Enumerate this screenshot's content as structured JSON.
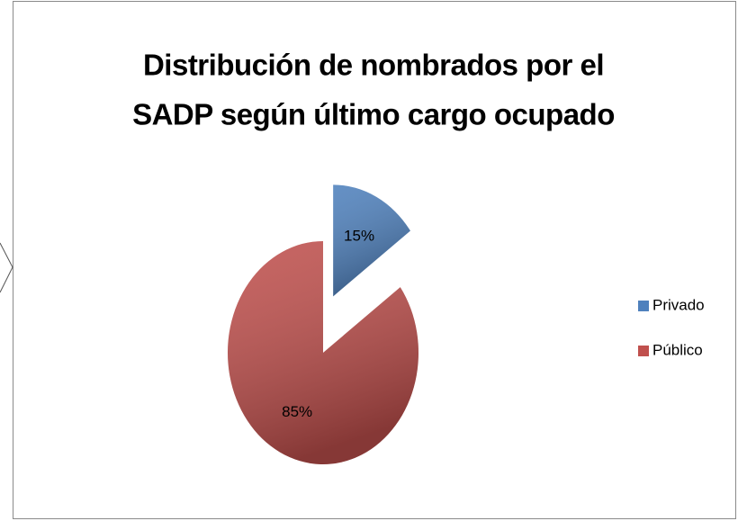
{
  "chart_data": {
    "type": "pie",
    "title": [
      "Distribución de nombrados por el",
      "SADP según último cargo ocupado"
    ],
    "categories": [
      "Privado",
      "Público"
    ],
    "values": [
      15,
      85
    ],
    "value_labels": [
      "15%",
      "85%"
    ],
    "colors": [
      "#4f81bd",
      "#c0504d"
    ],
    "legend": "right"
  }
}
